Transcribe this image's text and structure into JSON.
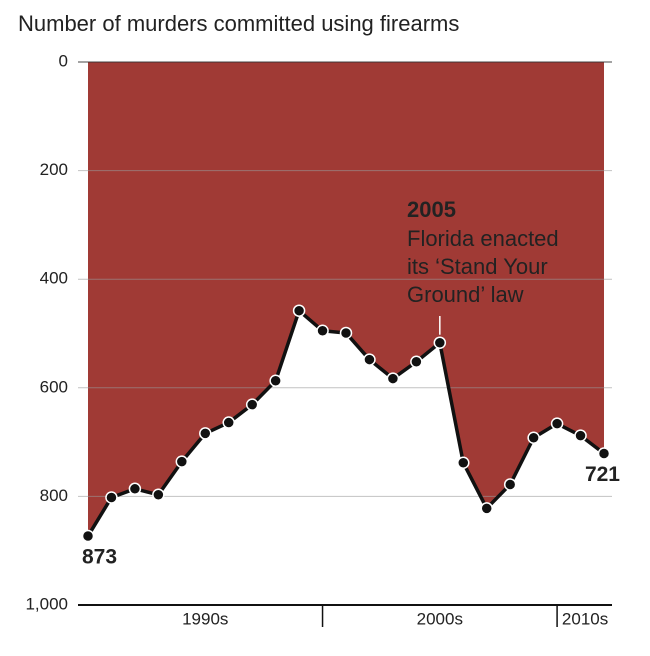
{
  "chart_data": {
    "type": "line",
    "title": "Number of murders committed using firearms",
    "categories": [
      null,
      null,
      null,
      null,
      null,
      null,
      null,
      null,
      null,
      null,
      null,
      null,
      null,
      null,
      null,
      null,
      null,
      null,
      null,
      null,
      null,
      null,
      null
    ],
    "decades": [
      "1990s",
      "2000s",
      "2010s"
    ],
    "values": [
      873,
      802,
      786,
      797,
      736,
      684,
      664,
      631,
      587,
      458,
      495,
      499,
      548,
      583,
      552,
      517,
      738,
      822,
      778,
      692,
      666,
      688,
      721
    ],
    "ylim": [
      0,
      1000
    ],
    "y_inverted": true,
    "yticks": [
      0,
      200,
      400,
      600,
      800,
      {
        "value": 1000,
        "label": "1,000"
      }
    ],
    "grid": true,
    "color": "#111111",
    "fill_color": "#a03a35",
    "annotation": {
      "year": "2005",
      "lines": [
        "Florida enacted",
        "its ‘Stand Your",
        "Ground’ law"
      ],
      "index": 15
    },
    "labeled_points": [
      0,
      22
    ]
  }
}
